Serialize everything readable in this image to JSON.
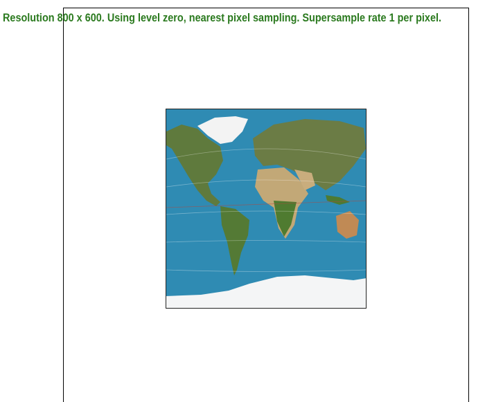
{
  "status": {
    "message": "Resolution 800 x 600. Using level zero, nearest pixel sampling. Supersample rate 1 per pixel."
  }
}
